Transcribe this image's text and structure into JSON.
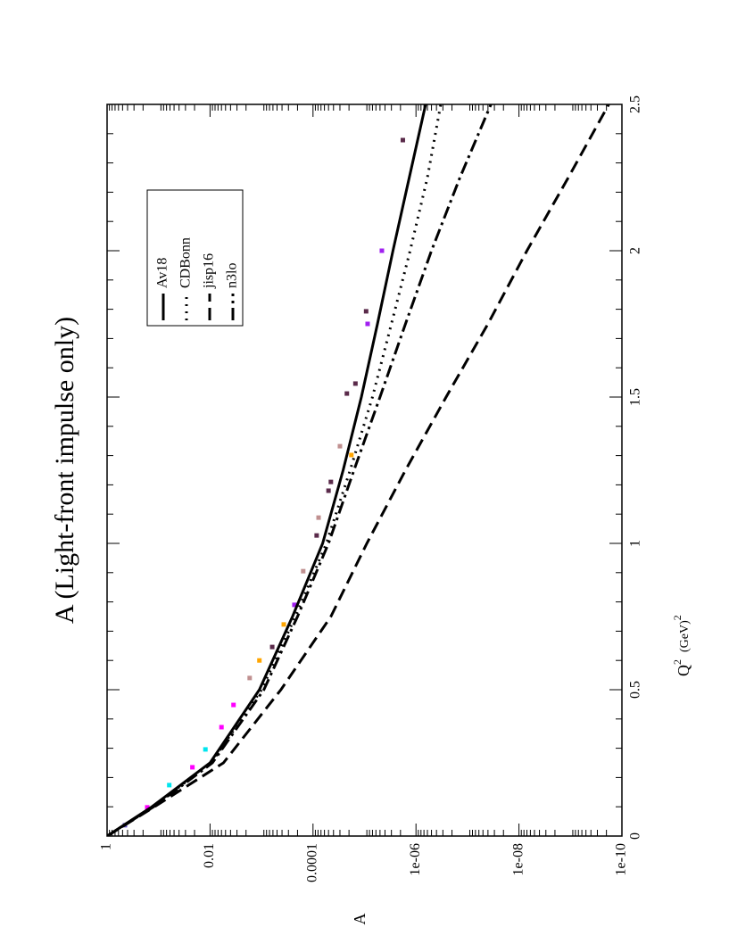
{
  "chart_data": {
    "type": "line",
    "title": "A (Light-front impulse only)",
    "x_label": "Q",
    "x_label_sup": "2",
    "x_label_unit": "(GeV)",
    "x_label_unit_sup": "2",
    "y_label": "A",
    "log_y": true,
    "xlim": [
      0,
      2.5
    ],
    "xticks": [
      0,
      0.5,
      1,
      1.5,
      2,
      2.5
    ],
    "ylim": [
      1e-10,
      1
    ],
    "yticks": [
      1,
      0.01,
      0.0001,
      {
        "value": 1e-06,
        "label": "1e-06"
      },
      {
        "value": 1e-08,
        "label": "1e-08"
      },
      {
        "value": 1e-10,
        "label": "1e-10"
      }
    ],
    "legend": "upper right",
    "x": [
      0,
      0.1,
      0.25,
      0.5,
      0.75,
      1,
      1.25,
      1.5,
      1.75,
      2,
      2.25,
      2.5
    ],
    "series": [
      {
        "name": "Av18",
        "color": "#000000",
        "dash": "solid",
        "values": [
          1,
          0.135,
          0.01,
          0.0011,
          0.00025,
          6.5e-05,
          2.6e-05,
          1.15e-05,
          5.6e-06,
          2.8e-06,
          1.35e-06,
          6.5e-07
        ]
      },
      {
        "name": "CDBonn",
        "color": "#000000",
        "dash": "dotted",
        "values": [
          1,
          0.13,
          0.0095,
          0.001,
          0.00022,
          5.5e-05,
          1.9e-05,
          7e-06,
          3e-06,
          1.3e-06,
          6e-07,
          3.3e-07
        ]
      },
      {
        "name": "jisp16",
        "color": "#000000",
        "dash": "dashed",
        "values": [
          1,
          0.12,
          0.0055,
          0.00042,
          4.5e-05,
          9e-06,
          1.6e-06,
          2.6e-07,
          4e-08,
          7e-09,
          1.1e-09,
          1.8e-10
        ]
      },
      {
        "name": "n3lo",
        "color": "#000000",
        "dash": "dashdot",
        "values": [
          1,
          0.125,
          0.009,
          0.0009,
          0.0002,
          5e-05,
          1.6e-05,
          5e-06,
          1.6e-06,
          5e-07,
          1.4e-07,
          3.5e-08
        ]
      }
    ],
    "points": {
      "x": [
        2.378,
        2.0,
        1.793,
        1.75,
        1.546,
        1.512,
        1.332,
        1.302,
        1.21,
        1.18,
        1.088,
        1.027,
        0.905,
        0.79,
        0.723,
        0.646,
        0.6,
        0.54,
        0.448,
        0.372,
        0.296,
        0.235,
        0.174,
        0.098,
        0.037
      ],
      "values": [
        1.8e-06,
        4.6e-06,
        9.3e-06,
        8.7e-06,
        1.5e-05,
        2.2e-05,
        3e-05,
        1.8e-05,
        4.5e-05,
        5e-05,
        7.8e-05,
        8.5e-05,
        0.000155,
        0.00023,
        0.00037,
        0.00062,
        0.0011,
        0.0017,
        0.0035,
        0.006,
        0.0123,
        0.022,
        0.062,
        0.166,
        0.45
      ],
      "colors": [
        "#5a2a4a",
        "#a020f0",
        "#5a2a4a",
        "#a020f0",
        "#5a2a4a",
        "#5a2a4a",
        "#c09090",
        "#ffa500",
        "#5a2a4a",
        "#5a2a4a",
        "#c09090",
        "#5a2a4a",
        "#c09090",
        "#a020f0",
        "#ffa500",
        "#5a2a4a",
        "#ffa500",
        "#c09090",
        "#ff00ff",
        "#ff00ff",
        "#00e5ee",
        "#ff00ff",
        "#00e5ee",
        "#ff00ff",
        "#6a5acd"
      ]
    }
  }
}
